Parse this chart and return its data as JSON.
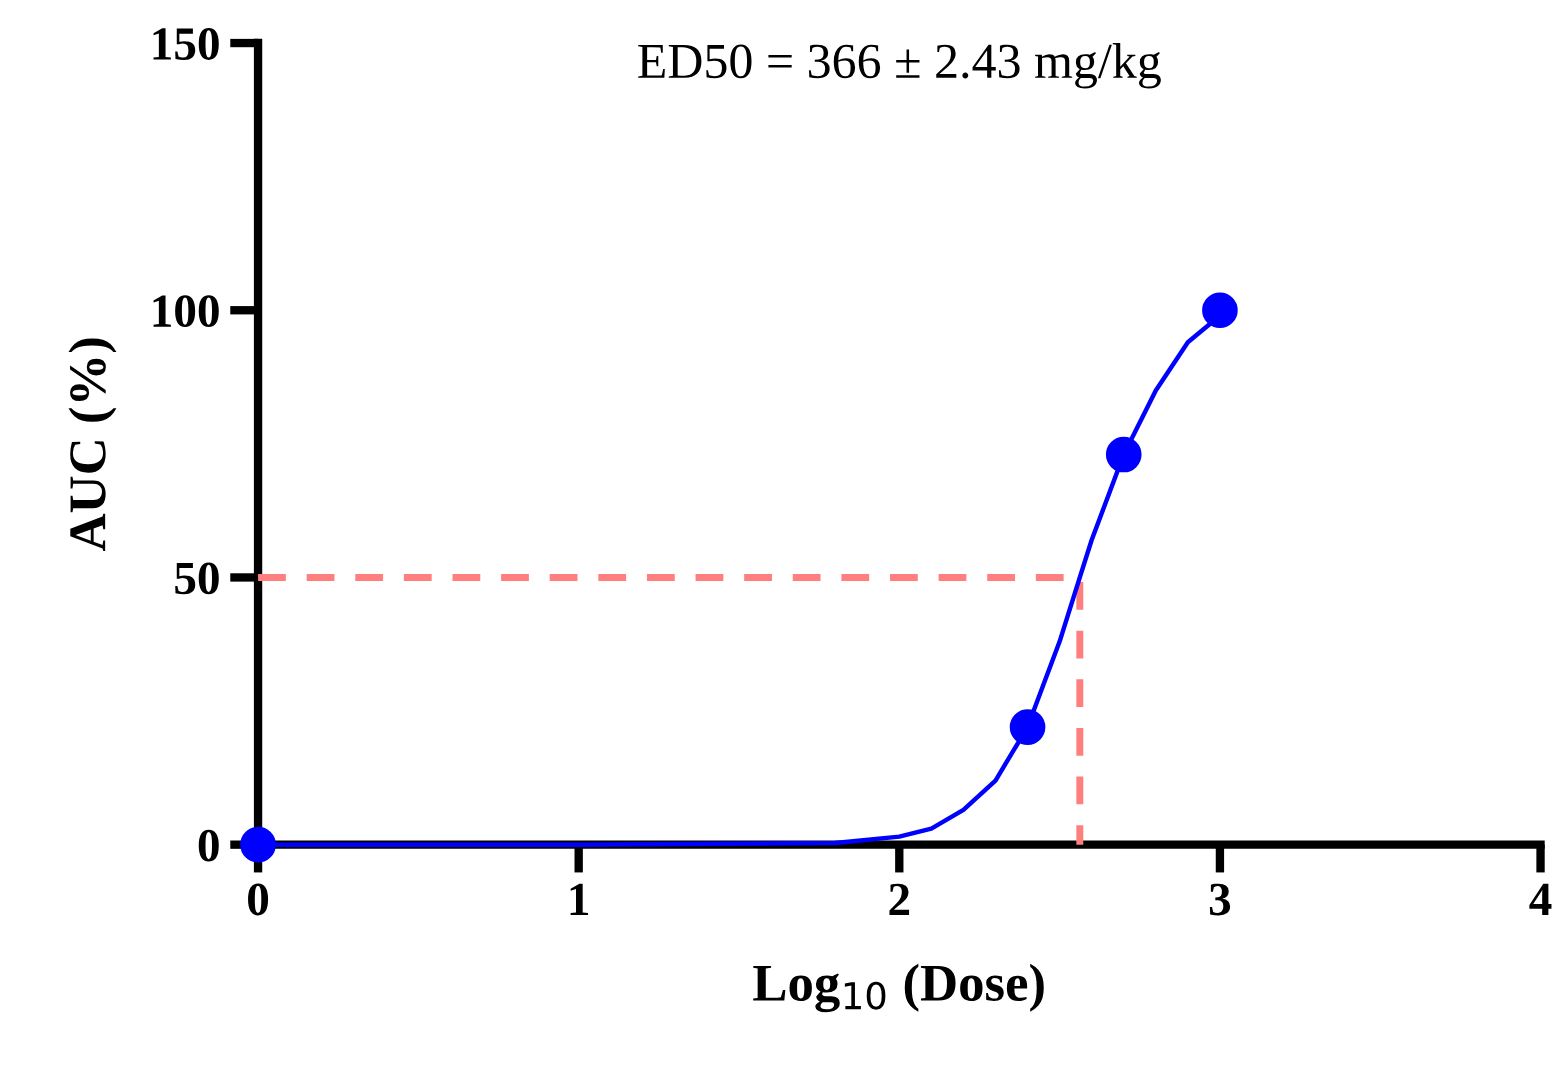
{
  "chart_data": {
    "type": "scatter",
    "title": "ED50 = 366 ± 2.43 mg/kg",
    "xlabel": "Log$_{10}$ (Dose)",
    "ylabel": "AUC (%)",
    "xlim": [
      0,
      4
    ],
    "ylim": [
      0,
      150
    ],
    "xticks": [
      0,
      1,
      2,
      3,
      4
    ],
    "yticks": [
      0,
      50,
      100,
      150
    ],
    "grid": false,
    "legend": false,
    "series": [
      {
        "color": "#0000ff",
        "marker": "circle",
        "x": [
          0,
          2.4,
          2.7,
          3.0
        ],
        "values": [
          0,
          22,
          73,
          100
        ]
      },
      {
        "type": "line",
        "color": "#0000ff",
        "line_style": "solid",
        "x": [
          0,
          1.0,
          1.8,
          2.0,
          2.1,
          2.2,
          2.3,
          2.4,
          2.5,
          2.563,
          2.6,
          2.7,
          2.8,
          2.9,
          3.0
        ],
        "values": [
          0,
          0,
          0.3,
          1.5,
          3,
          6.5,
          12,
          22,
          38,
          50,
          57,
          73,
          85,
          94,
          99
        ]
      },
      {
        "type": "line",
        "color": "#ff7f7f",
        "line_style": "dashed",
        "x": [
          0,
          2.563,
          2.563
        ],
        "values": [
          50,
          50,
          0
        ]
      }
    ]
  }
}
